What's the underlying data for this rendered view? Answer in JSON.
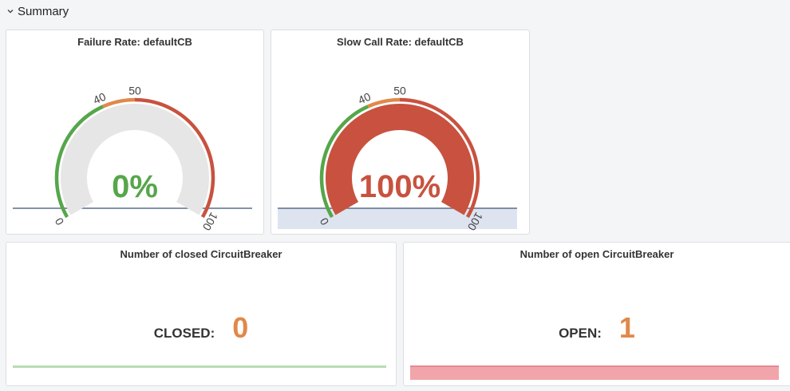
{
  "row": {
    "title": "Summary",
    "collapse_icon": "chevron-down-icon"
  },
  "colors": {
    "green": "#56a64b",
    "orange": "#e0894a",
    "red": "#c8523f",
    "track": "#e6e6e6"
  },
  "gauges": [
    {
      "title": "Failure Rate: defaultCB",
      "value": 0,
      "value_text": "0%",
      "min": 0,
      "max": 100,
      "thresholds": [
        {
          "from": 0,
          "to": 40,
          "color": "green"
        },
        {
          "from": 40,
          "to": 50,
          "color": "orange"
        },
        {
          "from": 50,
          "to": 100,
          "color": "red"
        }
      ],
      "tick_labels": [
        "0",
        "40",
        "50",
        "100"
      ],
      "sparkline": "flat"
    },
    {
      "title": "Slow Call Rate: defaultCB",
      "value": 100,
      "value_text": "100%",
      "min": 0,
      "max": 100,
      "thresholds": [
        {
          "from": 0,
          "to": 40,
          "color": "green"
        },
        {
          "from": 40,
          "to": 50,
          "color": "orange"
        },
        {
          "from": 50,
          "to": 100,
          "color": "red"
        }
      ],
      "tick_labels": [
        "0",
        "40",
        "50",
        "100"
      ],
      "sparkline": "filled"
    }
  ],
  "stats": [
    {
      "title": "Number of closed CircuitBreaker",
      "label": "CLOSED:",
      "value": "0",
      "spark_color": "#b9dcb4"
    },
    {
      "title": "Number of open CircuitBreaker",
      "label": "OPEN:",
      "value": "1",
      "spark_color": "#f1a5ab"
    }
  ]
}
